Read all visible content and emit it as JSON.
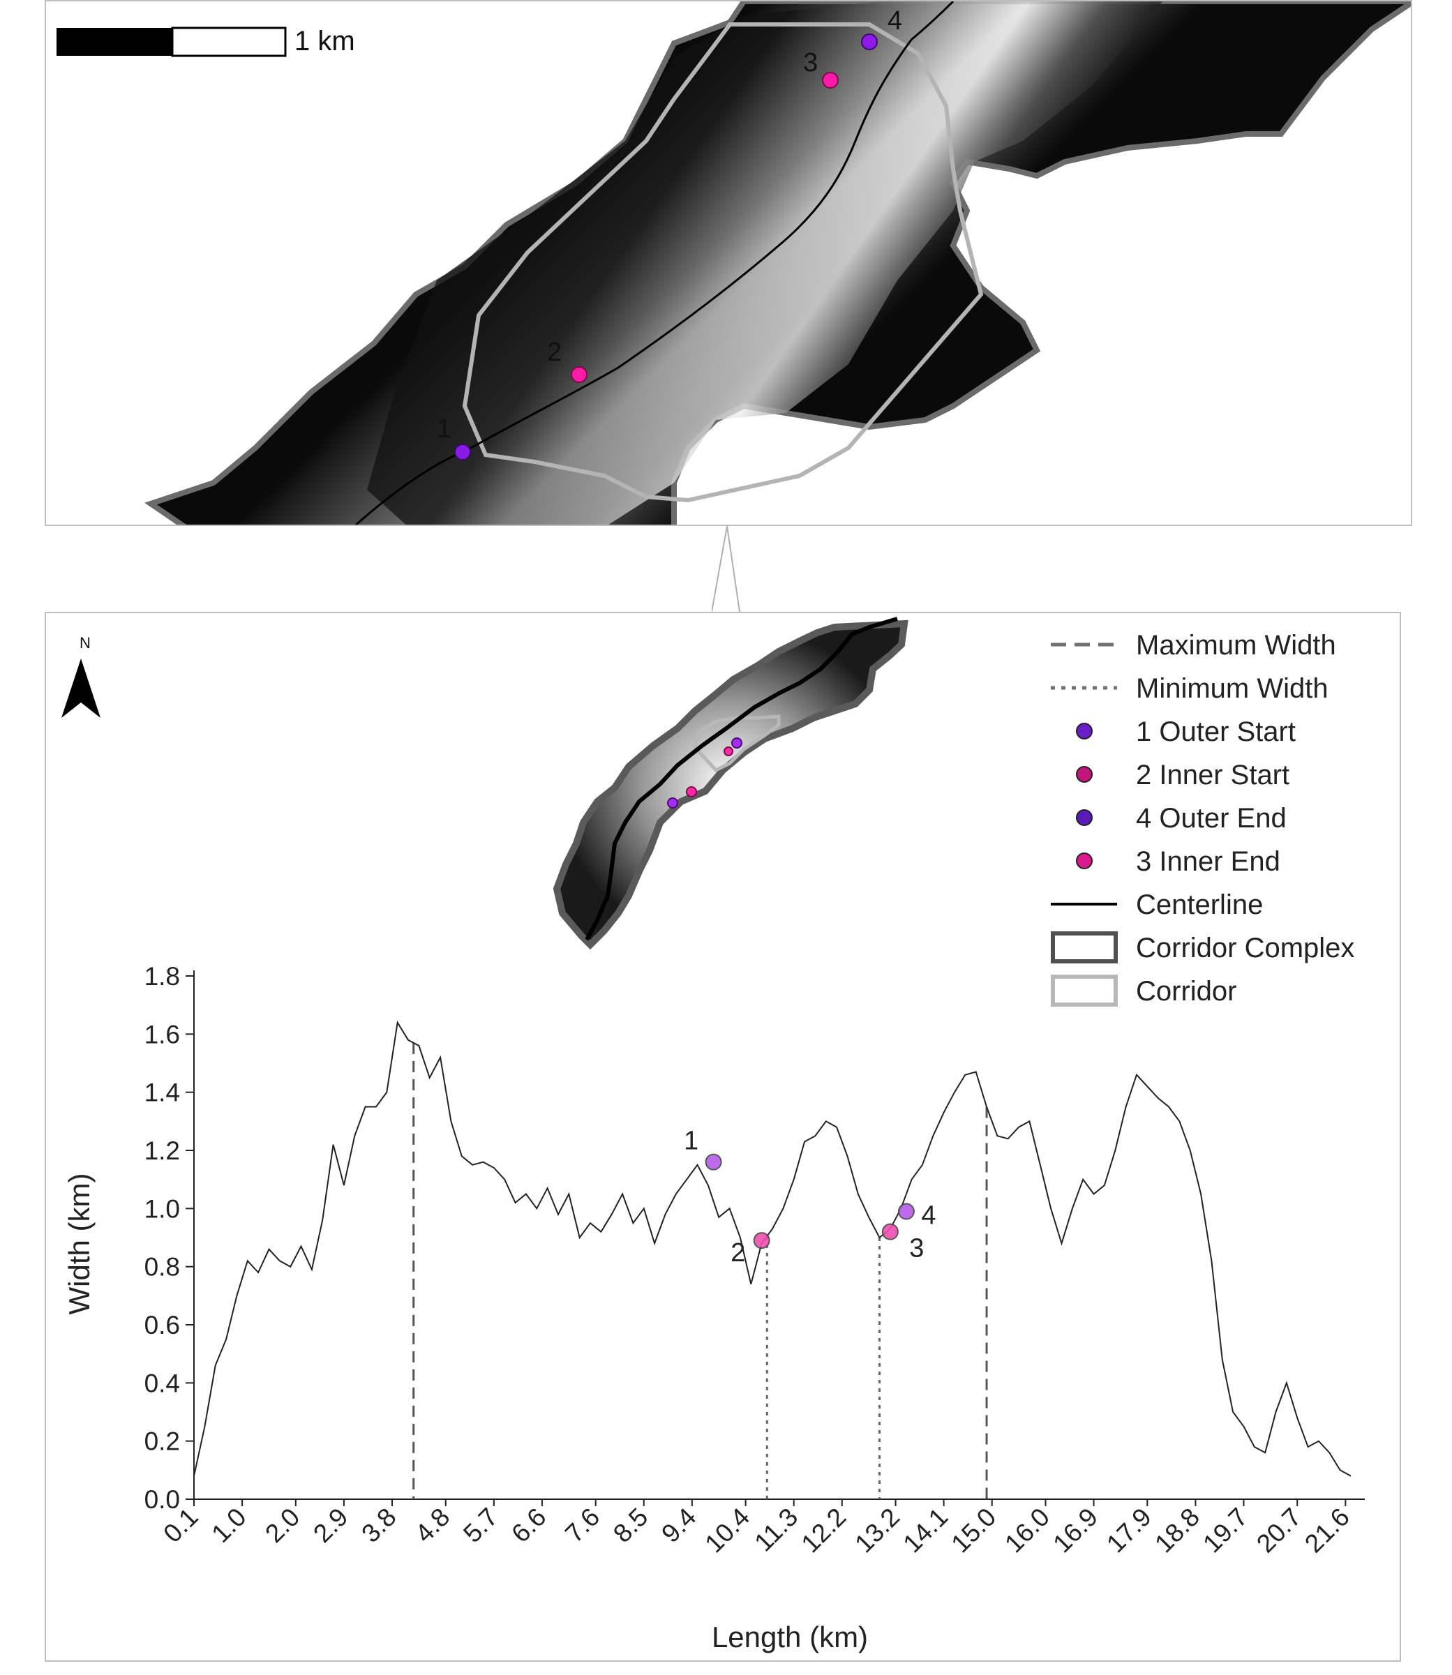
{
  "top_map": {
    "scale_bar_label": "1 km",
    "point_labels": [
      "1",
      "2",
      "3",
      "4"
    ],
    "colors": {
      "outer": "#8d1be8",
      "inner": "#ff1aa8",
      "corridor": "#b4b4b4",
      "complex": "#5a5a5a",
      "centerline": "#000000"
    }
  },
  "north_arrow": {
    "label": "N"
  },
  "legend": {
    "items": [
      {
        "label": "Maximum Width",
        "symbol": "dashed-line",
        "color": "#707070"
      },
      {
        "label": "Minimum Width",
        "symbol": "dotted-line",
        "color": "#707070"
      },
      {
        "label": "1 Outer Start",
        "symbol": "point",
        "color": "#6a1ec8"
      },
      {
        "label": "2 Inner Start",
        "symbol": "point",
        "color": "#c2147a"
      },
      {
        "label": "4 Outer End",
        "symbol": "point",
        "color": "#5a1ab8"
      },
      {
        "label": "3 Inner End",
        "symbol": "point",
        "color": "#d81a8c"
      },
      {
        "label": "Centerline",
        "symbol": "solid-line",
        "color": "#000000"
      },
      {
        "label": "Corridor Complex",
        "symbol": "box",
        "color": "#505050"
      },
      {
        "label": "Corridor",
        "symbol": "box",
        "color": "#b8b8b8"
      }
    ]
  },
  "chart_data": {
    "type": "line",
    "xlabel": "Length (km)",
    "ylabel": "Width (km)",
    "xlim": [
      0.1,
      21.7
    ],
    "ylim": [
      0,
      1.8
    ],
    "yticks": [
      0.0,
      0.2,
      0.4,
      0.6,
      0.8,
      1.0,
      1.2,
      1.4,
      1.6,
      1.8
    ],
    "ytick_labels": [
      "0.0",
      "0.2",
      "0.4",
      "0.6",
      "0.8",
      "1.0",
      "1.2",
      "1.4",
      "1.6",
      "1.8"
    ],
    "xticks": [
      "0.1",
      "1.0",
      "2.0",
      "2.9",
      "3.8",
      "4.8",
      "5.7",
      "6.6",
      "7.6",
      "8.5",
      "9.4",
      "10.4",
      "11.3",
      "12.2",
      "13.2",
      "14.1",
      "15.0",
      "16.0",
      "16.9",
      "17.9",
      "18.8",
      "19.7",
      "20.7",
      "21.6"
    ],
    "series": [
      {
        "color": "#222222",
        "x": [
          0.1,
          0.3,
          0.5,
          0.7,
          0.9,
          1.1,
          1.3,
          1.5,
          1.7,
          1.9,
          2.1,
          2.3,
          2.5,
          2.7,
          2.9,
          3.1,
          3.3,
          3.5,
          3.7,
          3.9,
          4.1,
          4.3,
          4.5,
          4.7,
          4.9,
          5.1,
          5.3,
          5.5,
          5.7,
          5.9,
          6.1,
          6.3,
          6.5,
          6.7,
          6.9,
          7.1,
          7.3,
          7.5,
          7.7,
          7.9,
          8.1,
          8.3,
          8.5,
          8.7,
          8.9,
          9.1,
          9.3,
          9.5,
          9.7,
          9.9,
          10.1,
          10.3,
          10.5,
          10.7,
          10.9,
          11.1,
          11.3,
          11.5,
          11.7,
          11.9,
          12.1,
          12.3,
          12.5,
          12.7,
          12.9,
          13.1,
          13.3,
          13.5,
          13.7,
          13.9,
          14.1,
          14.3,
          14.5,
          14.7,
          14.9,
          15.1,
          15.3,
          15.5,
          15.7,
          15.9,
          16.1,
          16.3,
          16.5,
          16.7,
          16.9,
          17.1,
          17.3,
          17.5,
          17.7,
          17.9,
          18.1,
          18.3,
          18.5,
          18.7,
          18.9,
          19.1,
          19.3,
          19.5,
          19.7,
          19.9,
          20.1,
          20.3,
          20.5,
          20.7,
          20.9,
          21.1,
          21.3,
          21.5,
          21.7
        ],
        "values": [
          0.08,
          0.25,
          0.46,
          0.55,
          0.7,
          0.82,
          0.78,
          0.86,
          0.82,
          0.8,
          0.87,
          0.79,
          0.96,
          1.22,
          1.08,
          1.25,
          1.35,
          1.35,
          1.4,
          1.64,
          1.58,
          1.56,
          1.45,
          1.52,
          1.3,
          1.18,
          1.15,
          1.16,
          1.14,
          1.1,
          1.02,
          1.05,
          1.0,
          1.07,
          0.98,
          1.05,
          0.9,
          0.95,
          0.92,
          0.98,
          1.05,
          0.95,
          1.0,
          0.88,
          0.98,
          1.05,
          1.1,
          1.15,
          1.08,
          0.97,
          1.0,
          0.9,
          0.74,
          0.88,
          0.93,
          1.0,
          1.1,
          1.23,
          1.25,
          1.3,
          1.28,
          1.18,
          1.05,
          0.97,
          0.9,
          0.93,
          1.0,
          1.1,
          1.15,
          1.25,
          1.33,
          1.4,
          1.46,
          1.47,
          1.35,
          1.25,
          1.24,
          1.28,
          1.3,
          1.15,
          1.0,
          0.88,
          1.0,
          1.1,
          1.05,
          1.08,
          1.2,
          1.35,
          1.46,
          1.42,
          1.38,
          1.35,
          1.3,
          1.2,
          1.05,
          0.82,
          0.48,
          0.3,
          0.25,
          0.18,
          0.16,
          0.3,
          0.4,
          0.28,
          0.18,
          0.2,
          0.16,
          0.1,
          0.08
        ]
      }
    ],
    "max_width_lines_x": [
      4.2,
      14.9
    ],
    "min_width_lines_x": [
      10.8,
      12.9
    ],
    "markers": [
      {
        "label": "1",
        "x": 9.8,
        "y": 1.16,
        "color": "#b65ce8"
      },
      {
        "label": "2",
        "x": 10.7,
        "y": 0.89,
        "color": "#ef4fb0"
      },
      {
        "label": "3",
        "x": 13.1,
        "y": 0.92,
        "color": "#ef4fb0"
      },
      {
        "label": "4",
        "x": 13.4,
        "y": 0.99,
        "color": "#b65ce8"
      }
    ]
  }
}
